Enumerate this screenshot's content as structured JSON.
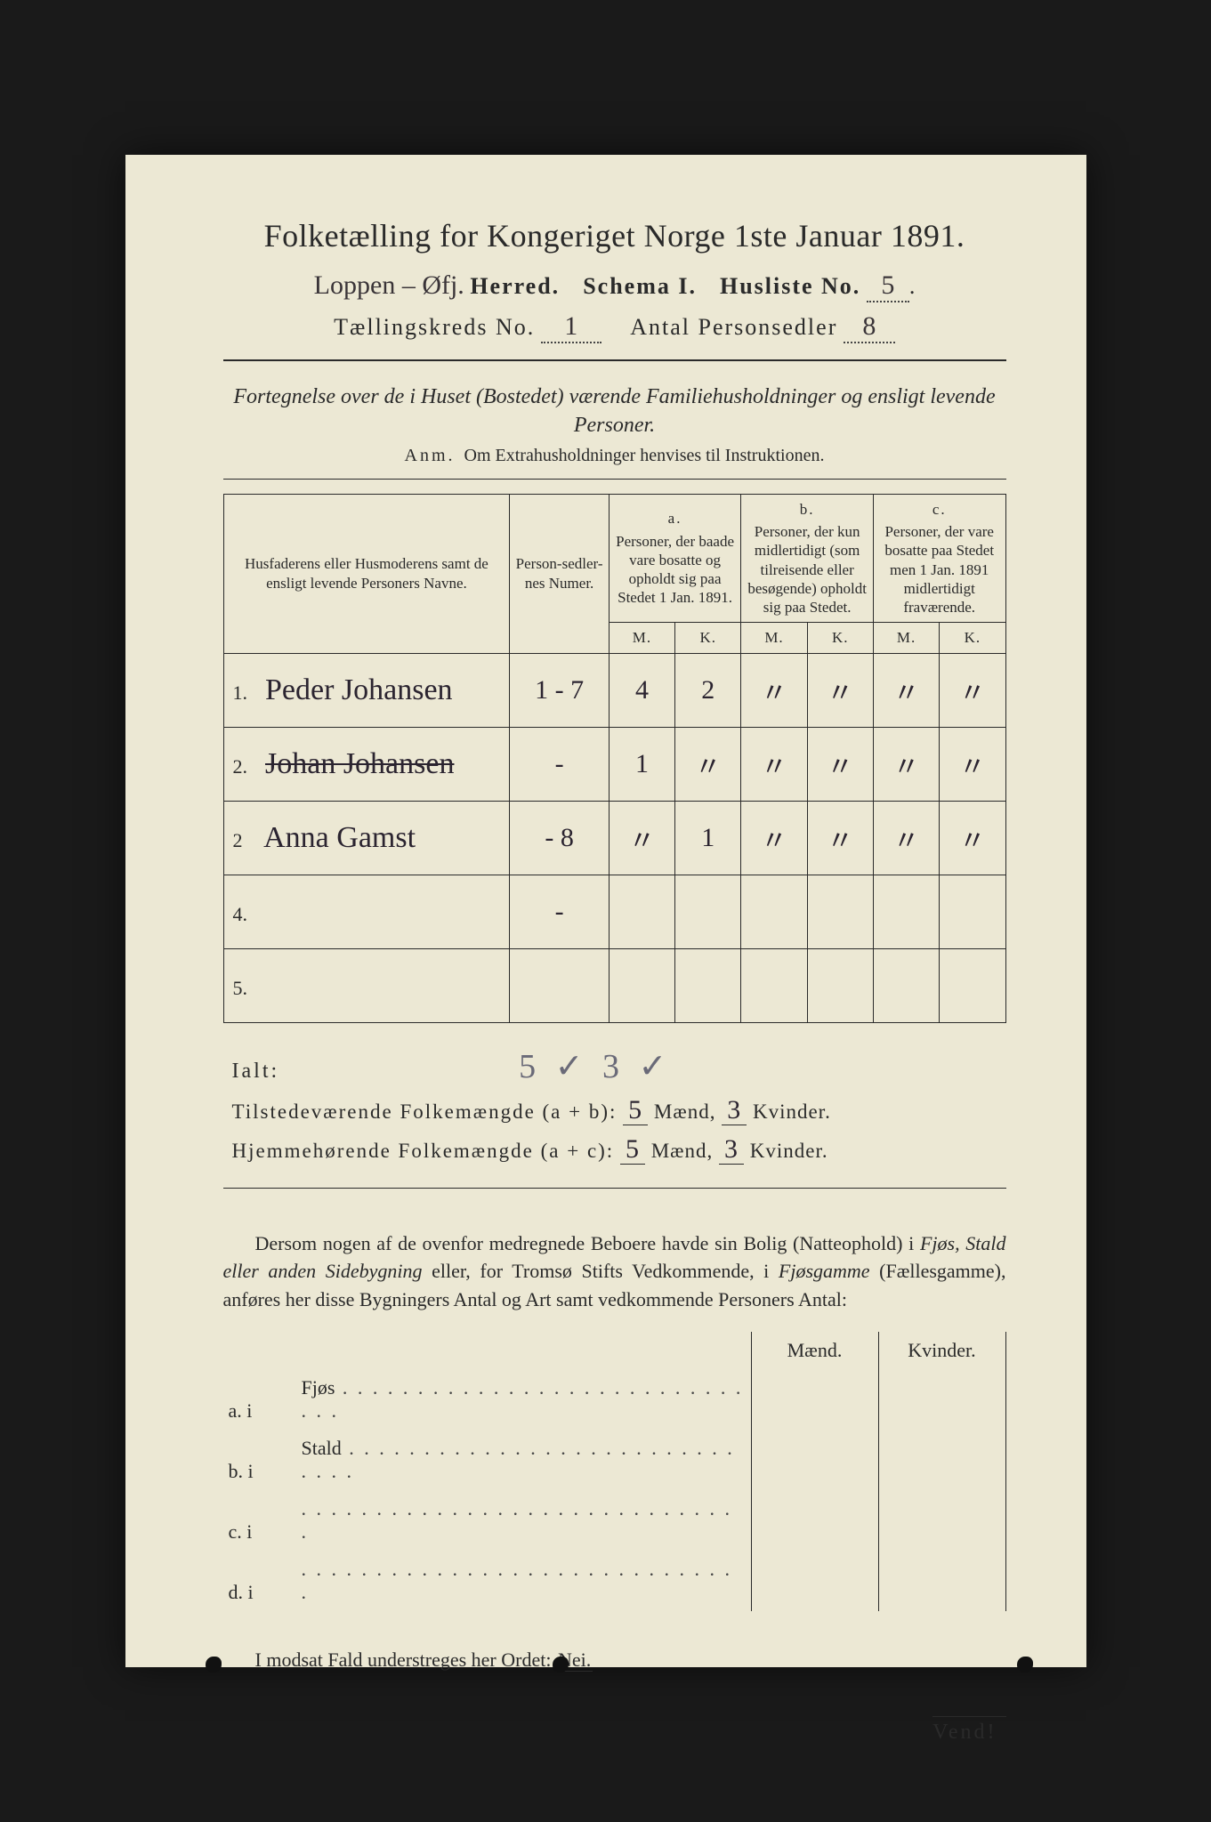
{
  "colors": {
    "page_bg": "#1a1a1a",
    "paper_bg": "#ece8d4",
    "ink": "#2a2a2a",
    "hand_ink": "#2b2430",
    "pencil": "#6a6a78"
  },
  "title": "Folketælling for Kongeriget Norge 1ste Januar 1891.",
  "header": {
    "herred_handwritten": "Loppen – Øfj.",
    "herred_label": "Herred.",
    "schema_label": "Schema I.",
    "husliste_label": "Husliste No.",
    "husliste_no": "5",
    "kreds_label": "Tællingskreds No.",
    "kreds_no": "1",
    "antal_label": "Antal Personsedler",
    "antal_val": "8"
  },
  "subheading": "Fortegnelse over de i Huset (Bostedet) værende Familiehusholdninger og ensligt levende Personer.",
  "anm_label": "Anm.",
  "anm_text": "Om Extrahusholdninger henvises til Instruktionen.",
  "table_headers": {
    "names": "Husfaderens eller Husmoderens samt de ensligt levende Personers Navne.",
    "numer": "Person-sedler-nes Numer.",
    "a_label": "a.",
    "a_text": "Personer, der baade vare bosatte og opholdt sig paa Stedet 1 Jan. 1891.",
    "b_label": "b.",
    "b_text": "Personer, der kun midlertidigt (som tilreisende eller besøgende) opholdt sig paa Stedet.",
    "c_label": "c.",
    "c_text": "Personer, der vare bosatte paa Stedet men 1 Jan. 1891 midlertidigt fraværende.",
    "M": "M.",
    "K": "K."
  },
  "rows": [
    {
      "idx": "1.",
      "name": "Peder Johansen",
      "struck": false,
      "numer": "1 - 7",
      "aM": "4",
      "aK": "2",
      "bM": "〃",
      "bK": "〃",
      "cM": "〃",
      "cK": "〃"
    },
    {
      "idx": "2.",
      "name": "Johan Johansen",
      "struck": true,
      "numer": "-",
      "aM": "1",
      "aK": "〃",
      "bM": "〃",
      "bK": "〃",
      "cM": "〃",
      "cK": "〃"
    },
    {
      "idx": "2",
      "name": "Anna Gamst",
      "struck": false,
      "numer": "- 8",
      "aM": "〃",
      "aK": "1",
      "bM": "〃",
      "bK": "〃",
      "cM": "〃",
      "cK": "〃"
    },
    {
      "idx": "4.",
      "name": "",
      "struck": false,
      "numer": "-",
      "aM": "",
      "aK": "",
      "bM": "",
      "bK": "",
      "cM": "",
      "cK": ""
    },
    {
      "idx": "5.",
      "name": "",
      "struck": false,
      "numer": "",
      "aM": "",
      "aK": "",
      "bM": "",
      "bK": "",
      "cM": "",
      "cK": ""
    }
  ],
  "ialt": {
    "label": "Ialt:",
    "pencil": "5 ✓ 3 ✓"
  },
  "summary": {
    "line1_label": "Tilstedeværende Folkemængde (a + b):",
    "line1_m": "5",
    "line1_k": "3",
    "line2_label": "Hjemmehørende Folkemængde (a + c):",
    "line2_m": "5",
    "line2_k": "3",
    "maend": "Mænd,",
    "kvinder": "Kvinder."
  },
  "paragraph": "Dersom nogen af de ovenfor medregnede Beboere havde sin Bolig (Natteophold) i Fjøs, Stald eller anden Sidebygning eller, for Tromsø Stifts Vedkommende, i Fjøsgamme (Fællesgamme), anføres her disse Bygningers Antal og Art samt vedkommende Personers Antal:",
  "fjos_table": {
    "h_maend": "Mænd.",
    "h_kvinder": "Kvinder.",
    "rows": [
      {
        "lbl": "a.  i",
        "type": "Fjøs"
      },
      {
        "lbl": "b.  i",
        "type": "Stald"
      },
      {
        "lbl": "c.  i",
        "type": ""
      },
      {
        "lbl": "d.  i",
        "type": ""
      }
    ]
  },
  "nei_line_pre": "I modsat Fald understreges her Ordet:",
  "nei_word": "Nei.",
  "vend": "Vend!"
}
